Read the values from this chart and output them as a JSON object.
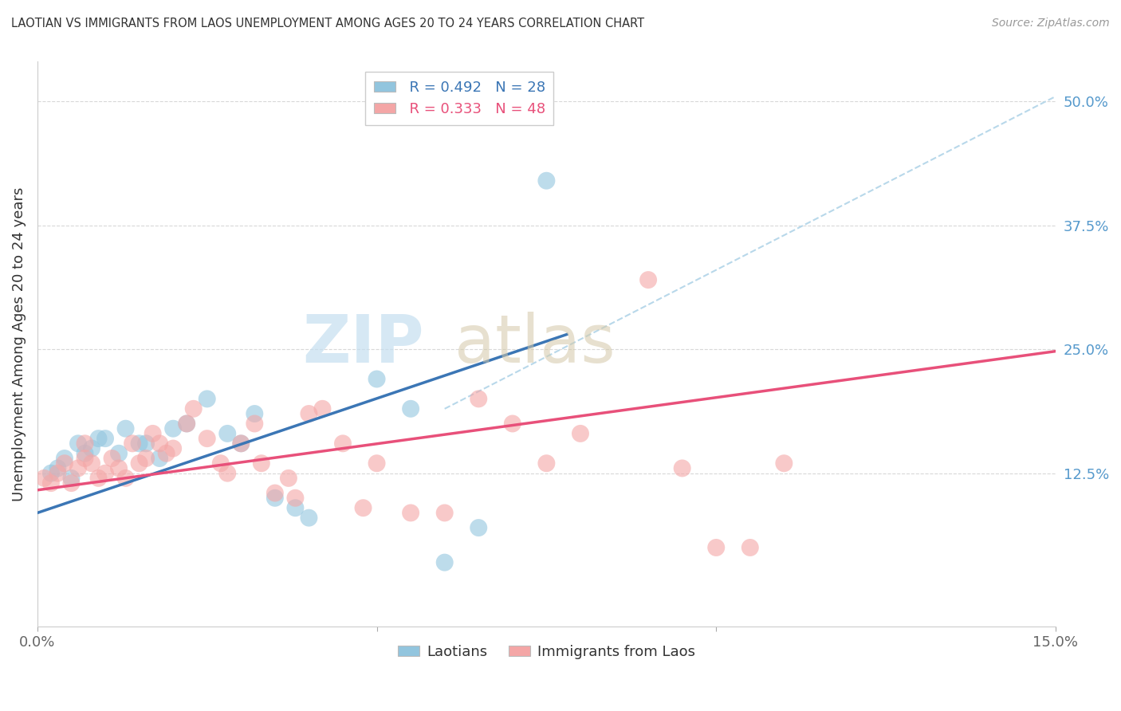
{
  "title": "LAOTIAN VS IMMIGRANTS FROM LAOS UNEMPLOYMENT AMONG AGES 20 TO 24 YEARS CORRELATION CHART",
  "source": "Source: ZipAtlas.com",
  "ylabel": "Unemployment Among Ages 20 to 24 years",
  "xmin": 0.0,
  "xmax": 0.15,
  "ymin": -0.03,
  "ymax": 0.54,
  "y_tick_right": [
    0.125,
    0.25,
    0.375,
    0.5
  ],
  "y_tick_right_labels": [
    "12.5%",
    "25.0%",
    "37.5%",
    "50.0%"
  ],
  "legend_blue_R": "R = 0.492",
  "legend_blue_N": "N = 28",
  "legend_pink_R": "R = 0.333",
  "legend_pink_N": "N = 48",
  "blue_color": "#92c5de",
  "pink_color": "#f4a6a6",
  "blue_line_color": "#3b76b5",
  "pink_line_color": "#e8507a",
  "dashed_line_color": "#b8d8ea",
  "blue_scatter_x": [
    0.002,
    0.003,
    0.004,
    0.005,
    0.006,
    0.007,
    0.008,
    0.009,
    0.01,
    0.012,
    0.013,
    0.015,
    0.016,
    0.018,
    0.02,
    0.022,
    0.025,
    0.028,
    0.03,
    0.032,
    0.035,
    0.038,
    0.04,
    0.05,
    0.055,
    0.06,
    0.065,
    0.075
  ],
  "blue_scatter_y": [
    0.125,
    0.13,
    0.14,
    0.12,
    0.155,
    0.145,
    0.15,
    0.16,
    0.16,
    0.145,
    0.17,
    0.155,
    0.155,
    0.14,
    0.17,
    0.175,
    0.2,
    0.165,
    0.155,
    0.185,
    0.1,
    0.09,
    0.08,
    0.22,
    0.19,
    0.035,
    0.07,
    0.42
  ],
  "pink_scatter_x": [
    0.001,
    0.002,
    0.003,
    0.004,
    0.005,
    0.006,
    0.007,
    0.007,
    0.008,
    0.009,
    0.01,
    0.011,
    0.012,
    0.013,
    0.014,
    0.015,
    0.016,
    0.017,
    0.018,
    0.019,
    0.02,
    0.022,
    0.023,
    0.025,
    0.027,
    0.028,
    0.03,
    0.032,
    0.033,
    0.035,
    0.037,
    0.038,
    0.04,
    0.042,
    0.045,
    0.048,
    0.05,
    0.055,
    0.06,
    0.065,
    0.07,
    0.075,
    0.08,
    0.09,
    0.095,
    0.1,
    0.105,
    0.11
  ],
  "pink_scatter_y": [
    0.12,
    0.115,
    0.125,
    0.135,
    0.115,
    0.13,
    0.14,
    0.155,
    0.135,
    0.12,
    0.125,
    0.14,
    0.13,
    0.12,
    0.155,
    0.135,
    0.14,
    0.165,
    0.155,
    0.145,
    0.15,
    0.175,
    0.19,
    0.16,
    0.135,
    0.125,
    0.155,
    0.175,
    0.135,
    0.105,
    0.12,
    0.1,
    0.185,
    0.19,
    0.155,
    0.09,
    0.135,
    0.085,
    0.085,
    0.2,
    0.175,
    0.135,
    0.165,
    0.32,
    0.13,
    0.05,
    0.05,
    0.135
  ],
  "blue_trend_x": [
    0.0,
    0.078
  ],
  "blue_trend_y": [
    0.085,
    0.265
  ],
  "pink_trend_x": [
    0.0,
    0.15
  ],
  "pink_trend_y": [
    0.108,
    0.248
  ],
  "dashed_trend_x": [
    0.06,
    0.15
  ],
  "dashed_trend_y": [
    0.19,
    0.505
  ]
}
